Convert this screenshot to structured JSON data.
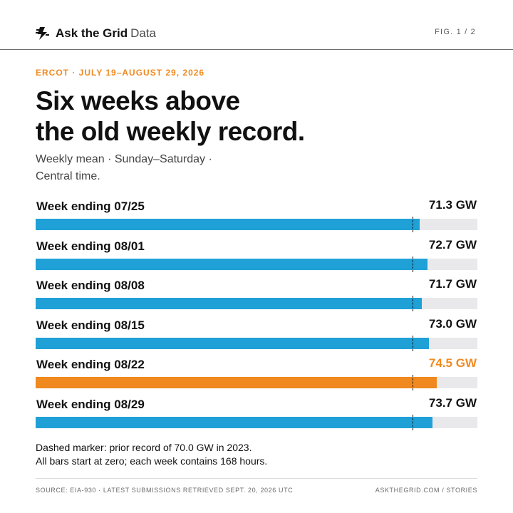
{
  "brand": {
    "name": "Ask the Grid",
    "sub": "Data",
    "fig": "FIG. 1 / 2",
    "logo_icon": "lightning-bolt-icon"
  },
  "kicker": "ERCOT · JULY 19–AUGUST 29, 2026",
  "title_lines": [
    "Six weeks above",
    "the old weekly record."
  ],
  "subtitle": [
    "Weekly mean · Sunday–Saturday ·",
    "Central time."
  ],
  "notes": [
    "Dashed marker: prior record of 70.0 GW in 2023.",
    "All bars start at zero; each week contains 168 hours."
  ],
  "footer": {
    "source": "SOURCE: EIA-930 · LATEST SUBMISSIONS RETRIEVED SEPT. 20, 2026 UTC",
    "site": "ASKTHEGRID.COM / STORIES"
  },
  "colors": {
    "bar": "#1fa0d6",
    "highlight": "#f0891f",
    "track": "#e9e9ec"
  },
  "chart_data": {
    "type": "bar",
    "orientation": "horizontal",
    "categories": [
      "Week ending 07/25",
      "Week ending 08/01",
      "Week ending 08/08",
      "Week ending 08/15",
      "Week ending 08/22",
      "Week ending 08/29"
    ],
    "values": [
      71.3,
      72.7,
      71.7,
      73.0,
      74.5,
      73.7
    ],
    "value_labels": [
      "71.3 GW",
      "72.7 GW",
      "71.7 GW",
      "73.0 GW",
      "74.5 GW",
      "73.7 GW"
    ],
    "highlight_index": 4,
    "reference_line": {
      "value": 70.0,
      "style": "dashed"
    },
    "xlim": [
      0,
      82
    ],
    "unit": "GW"
  }
}
